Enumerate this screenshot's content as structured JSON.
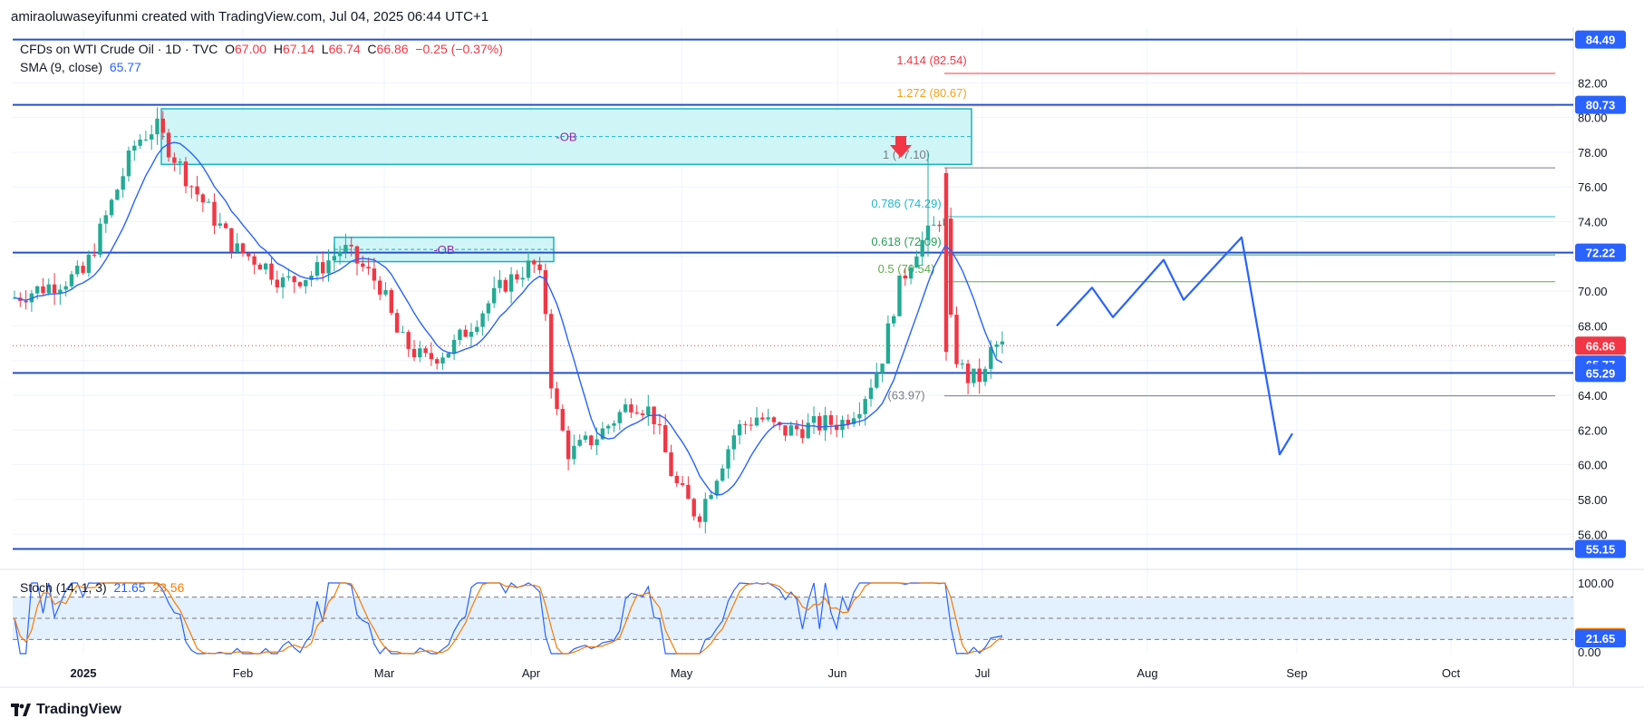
{
  "header": {
    "credit": "amiraoluwaseyifunmi created with TradingView.com, Jul 04, 2025 06:44 UTC+1"
  },
  "legend": {
    "symbol": "CFDs on WTI Crude Oil · 1D · TVC",
    "o_label": "O",
    "o": "67.00",
    "h_label": "H",
    "h": "67.14",
    "l_label": "L",
    "l": "66.74",
    "c_label": "C",
    "c": "66.86",
    "change": "−0.25 (−0.37%)",
    "sma_label": "SMA (9, close)",
    "sma": "65.77"
  },
  "stoch_legend": {
    "label": "Stoch (14, 1, 3)",
    "k": "21.65",
    "d": "23.56"
  },
  "footer": {
    "brand": "TradingView"
  },
  "colors": {
    "up": "#22ab94",
    "down": "#f23645",
    "sma": "#2962ff",
    "level": "#2650c8",
    "ob_fill": "#c8f3f6",
    "ob_border": "#19b3c6",
    "fib_1414": "#f23645",
    "fib_1272": "#f7a21b",
    "fib_1": "#787b86",
    "fib_0786": "#1fb8c9",
    "fib_0618": "#2a9d5a",
    "fib_05": "#5ead4c",
    "fib_0": "#787b86",
    "stoch_k": "#2962ff",
    "stoch_d": "#f57c00",
    "stoch_band": "#e3f0fd",
    "projection": "#2962ff"
  },
  "chart_data": {
    "type": "candlestick",
    "x_axis": {
      "labels": [
        "2025",
        "Feb",
        "Mar",
        "Apr",
        "May",
        "Jun",
        "Jul",
        "Aug",
        "Sep",
        "Oct"
      ]
    },
    "y_axis": {
      "ticks": [
        "56.00",
        "58.00",
        "60.00",
        "62.00",
        "64.00",
        "66.00",
        "68.00",
        "70.00",
        "72.00",
        "74.00",
        "76.00",
        "78.00",
        "80.00",
        "82.00"
      ],
      "range": [
        54.5,
        85.2
      ]
    },
    "price_labels": [
      {
        "text": "84.49",
        "value": 84.49,
        "bg": "#2962ff"
      },
      {
        "text": "80.73",
        "value": 80.73,
        "bg": "#2962ff"
      },
      {
        "text": "72.22",
        "value": 72.22,
        "bg": "#2962ff"
      },
      {
        "text": "66.86",
        "value": 66.86,
        "bg": "#f23645"
      },
      {
        "text": "65.77",
        "value": 65.77,
        "bg": "#2962ff"
      },
      {
        "text": "65.29",
        "value": 65.29,
        "bg": "#2962ff"
      },
      {
        "text": "55.15",
        "value": 55.15,
        "bg": "#2962ff"
      }
    ],
    "horizontal_levels": [
      84.49,
      80.73,
      72.22,
      65.29,
      55.15
    ],
    "order_blocks": [
      {
        "label": "-OB",
        "top": 80.5,
        "bottom": 77.3,
        "mid": 78.9
      },
      {
        "label": "-OB",
        "top": 73.1,
        "bottom": 71.7,
        "mid": 72.4
      }
    ],
    "fib_levels": [
      {
        "label": "1.414 (82.54)",
        "value": 82.54,
        "color": "#f23645"
      },
      {
        "label": "1.272 (80.67)",
        "value": 80.67,
        "color": "#f7a21b"
      },
      {
        "label": "1 (77.10)",
        "value": 77.1,
        "color": "#787b86"
      },
      {
        "label": "0.786 (74.29)",
        "value": 74.29,
        "color": "#1fb8c9"
      },
      {
        "label": "0.618 (72.09)",
        "value": 72.09,
        "color": "#2a9d5a"
      },
      {
        "label": "0.5 (70.54)",
        "value": 70.54,
        "color": "#5ead4c"
      },
      {
        "label": "(63.97)",
        "value": 63.97,
        "color": "#787b86"
      }
    ],
    "last_close": 66.86,
    "stoch": {
      "k_last": 21.65,
      "d_last": 23.56,
      "upper": 80,
      "lower": 20,
      "ticks": [
        "100.00",
        "0.00"
      ]
    }
  }
}
